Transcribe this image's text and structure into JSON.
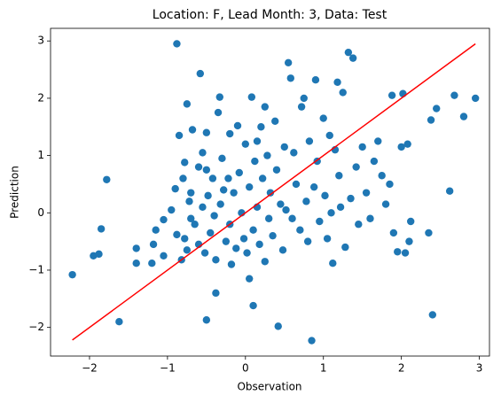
{
  "chart_data": {
    "type": "scatter",
    "title": "Location: F, Lead Month: 3, Data: Test",
    "xlabel": "Observation",
    "ylabel": "Prediction",
    "xlim": [
      -2.5,
      3.13
    ],
    "ylim": [
      -2.5,
      3.22
    ],
    "xticks": [
      {
        "value": -2,
        "label": "−2"
      },
      {
        "value": -1,
        "label": "−1"
      },
      0,
      1,
      2,
      3
    ],
    "yticks": [
      {
        "value": -2,
        "label": "−2"
      },
      {
        "value": -1,
        "label": "−1"
      },
      0,
      1,
      2,
      3
    ],
    "grid": false,
    "series": [
      {
        "color": "#1f77b4",
        "mode": "markers",
        "x": [
          -2.22,
          -1.95,
          -1.88,
          -1.85,
          -1.78,
          -1.62,
          -1.4,
          -1.4,
          -1.2,
          -1.18,
          -1.15,
          -1.05,
          -1.05,
          -0.95,
          -0.88,
          -0.88,
          -0.9,
          -0.85,
          -0.82,
          -0.8,
          -0.78,
          -0.78,
          -0.75,
          -0.75,
          -0.72,
          -0.7,
          -0.7,
          -0.68,
          -0.65,
          -0.6,
          -0.6,
          -0.58,
          -0.55,
          -0.55,
          -0.52,
          -0.5,
          -0.5,
          -0.5,
          -0.48,
          -0.45,
          -0.42,
          -0.4,
          -0.38,
          -0.38,
          -0.35,
          -0.33,
          -0.32,
          -0.3,
          -0.28,
          -0.25,
          -0.22,
          -0.2,
          -0.2,
          -0.18,
          -0.15,
          -0.12,
          -0.1,
          -0.08,
          -0.05,
          -0.02,
          0.0,
          0.02,
          0.05,
          0.05,
          0.08,
          0.1,
          0.1,
          0.12,
          0.15,
          0.15,
          0.18,
          0.2,
          0.22,
          0.25,
          0.25,
          0.28,
          0.3,
          0.32,
          0.35,
          0.38,
          0.4,
          0.42,
          0.45,
          0.48,
          0.5,
          0.52,
          0.55,
          0.58,
          0.6,
          0.62,
          0.65,
          0.7,
          0.72,
          0.75,
          0.78,
          0.8,
          0.82,
          0.85,
          0.88,
          0.9,
          0.92,
          0.95,
          1.0,
          1.02,
          1.05,
          1.08,
          1.1,
          1.12,
          1.15,
          1.18,
          1.2,
          1.22,
          1.25,
          1.28,
          1.32,
          1.35,
          1.38,
          1.42,
          1.45,
          1.5,
          1.55,
          1.6,
          1.65,
          1.7,
          1.75,
          1.8,
          1.85,
          1.88,
          1.9,
          1.95,
          2.0,
          2.02,
          2.05,
          2.08,
          2.1,
          2.12,
          2.35,
          2.38,
          2.4,
          2.45,
          2.62,
          2.68,
          2.8,
          2.95
        ],
        "values": [
          -1.08,
          -0.75,
          -0.72,
          -0.28,
          0.58,
          -1.9,
          -0.62,
          -0.88,
          -0.88,
          -0.55,
          -0.3,
          -0.12,
          -0.75,
          0.05,
          2.95,
          -0.38,
          0.42,
          1.35,
          -0.82,
          0.6,
          -0.45,
          0.88,
          1.9,
          -0.65,
          0.2,
          0.35,
          -0.1,
          1.45,
          -0.2,
          0.8,
          -0.55,
          2.43,
          1.05,
          0.1,
          -0.7,
          -1.87,
          1.4,
          0.75,
          0.3,
          -0.35,
          0.6,
          -0.05,
          -0.82,
          -1.4,
          1.75,
          2.02,
          0.15,
          0.95,
          0.4,
          -0.5,
          0.6,
          1.38,
          -0.2,
          -0.9,
          0.35,
          -0.62,
          1.52,
          0.7,
          0.0,
          -0.45,
          1.2,
          -0.7,
          -1.15,
          0.45,
          2.02,
          -0.3,
          -1.62,
          0.9,
          1.25,
          0.1,
          -0.55,
          1.5,
          0.6,
          1.85,
          -0.85,
          1.0,
          -0.1,
          0.35,
          -0.4,
          1.6,
          0.75,
          -1.98,
          0.15,
          -0.65,
          1.15,
          0.05,
          2.62,
          2.35,
          -0.1,
          1.05,
          0.5,
          -0.3,
          1.85,
          2.0,
          0.2,
          -0.5,
          1.25,
          -2.23,
          0.45,
          2.32,
          0.9,
          -0.15,
          1.65,
          0.3,
          -0.45,
          1.35,
          0.0,
          -0.88,
          1.1,
          2.28,
          0.65,
          0.1,
          2.1,
          -0.6,
          2.8,
          0.25,
          2.7,
          0.8,
          -0.2,
          1.15,
          0.35,
          -0.1,
          0.9,
          1.25,
          0.65,
          0.15,
          0.5,
          2.05,
          -0.35,
          -0.68,
          1.15,
          2.08,
          -0.7,
          1.2,
          -0.5,
          -0.15,
          -0.35,
          1.62,
          -1.78,
          1.82,
          0.38,
          2.05,
          1.68,
          2.0
        ]
      },
      {
        "color": "#ff0000",
        "mode": "line",
        "x": [
          -2.22,
          2.95
        ],
        "values": [
          -2.22,
          2.95
        ]
      }
    ]
  }
}
